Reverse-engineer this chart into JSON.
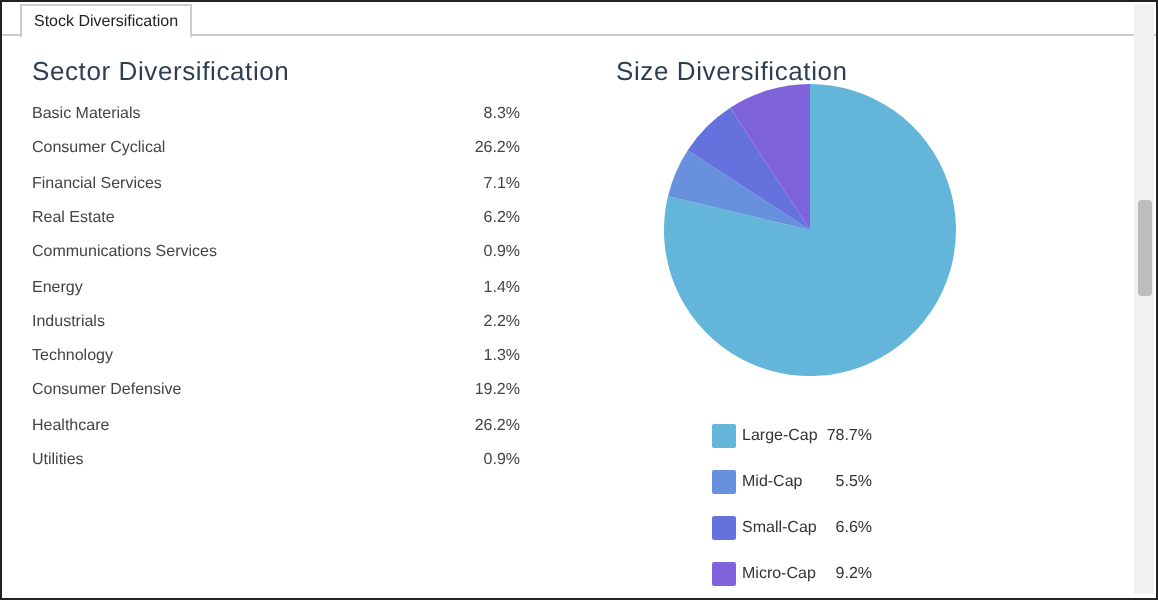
{
  "chart_data": [
    {
      "type": "other",
      "title": "Sector Diversification",
      "annotations": [
        "Stock Diversification"
      ],
      "categories": [
        "Basic Materials",
        "Consumer Cyclical",
        "Financial Services",
        "Real Estate",
        "Communications Services",
        "Energy",
        "Industrials",
        "Technology",
        "Consumer Defensive",
        "Healthcare",
        "Utilities"
      ],
      "value_labels": [
        "8.3%",
        "26.2%",
        "7.1%",
        "6.2%",
        "0.9%",
        "1.4%",
        "2.2%",
        "1.3%",
        "19.2%",
        "26.2%",
        "0.9%"
      ]
    },
    {
      "type": "pie",
      "title": "Size Diversification",
      "legend": "bottom",
      "categories": [
        "Large-Cap",
        "Mid-Cap",
        "Small-Cap",
        "Micro-Cap"
      ],
      "values": [
        78.7,
        5.5,
        6.6,
        9.2
      ],
      "value_labels": [
        "78.7%",
        "5.5%",
        "6.6%",
        "9.2%"
      ],
      "colors": [
        "#63b5da",
        "#6790dd",
        "#6571dc",
        "#7f63db"
      ]
    }
  ]
}
